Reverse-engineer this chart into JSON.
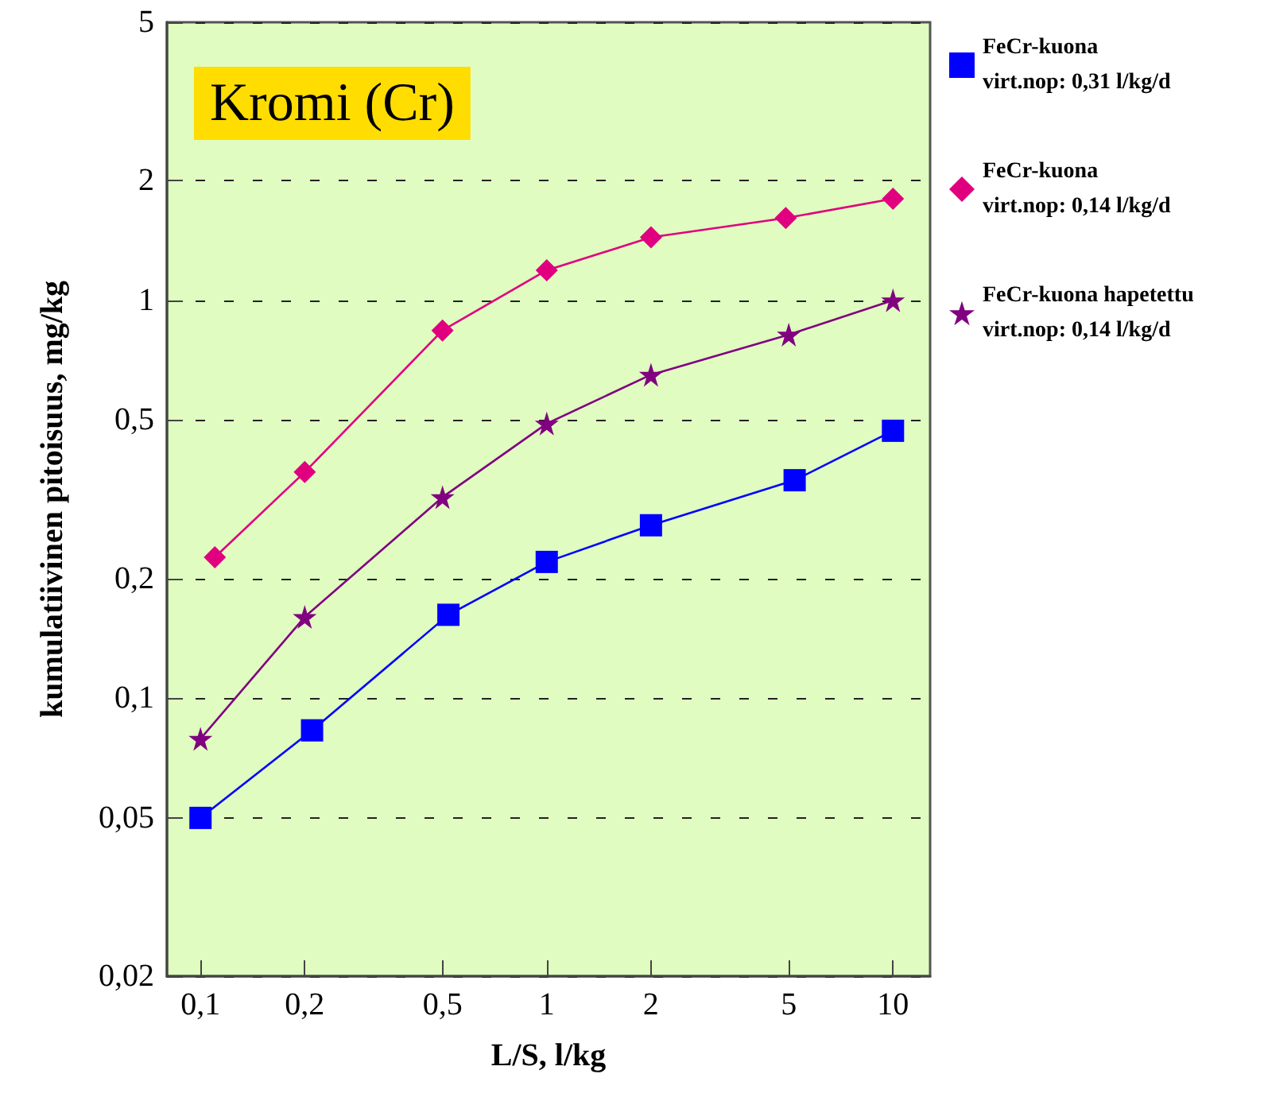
{
  "chart_data": {
    "type": "line",
    "title": "Kromi (Cr)",
    "xlabel": "L/S, l/kg",
    "ylabel": "kumulatiivinen pitoisuus, mg/kg",
    "log": "xy",
    "grid": "y",
    "legend": "top right",
    "line_style": "solid",
    "xlim": [
      0.08,
      12.8
    ],
    "xticks": [
      {
        "value": 0.1,
        "label": "0,1"
      },
      {
        "value": 0.2,
        "label": "0,2"
      },
      {
        "value": 0.5,
        "label": "0,5"
      },
      1,
      2,
      5,
      10
    ],
    "ylim": [
      0.02,
      5
    ],
    "yticks": [
      {
        "value": 0.02,
        "label": "0,02"
      },
      {
        "value": 0.05,
        "label": "0,05"
      },
      {
        "value": 0.1,
        "label": "0,1"
      },
      {
        "value": 0.2,
        "label": "0,2"
      },
      {
        "value": 0.5,
        "label": "0,5"
      },
      1,
      2,
      5
    ],
    "series": [
      {
        "name": "FeCr-kuona\nvirt.nop: 0,31 l/kg/d",
        "color": "#0000ff",
        "marker": "square",
        "x": [
          0.1,
          0.21,
          0.52,
          1,
          2,
          5.2,
          10
        ],
        "values": [
          0.05,
          0.083,
          0.162,
          0.22,
          0.272,
          0.353,
          0.47
        ]
      },
      {
        "name": "FeCr-kuona\nvirt.nop: 0,14 l/kg/d",
        "color": "#e0007f",
        "marker": "diamond",
        "x": [
          0.11,
          0.2,
          0.5,
          1,
          2,
          4.9,
          10
        ],
        "values": [
          0.226,
          0.37,
          0.84,
          1.19,
          1.44,
          1.61,
          1.8
        ]
      },
      {
        "name": "FeCr-kuona hapetettu\nvirt.nop: 0,14 l/kg/d",
        "color": "#800080",
        "marker": "star",
        "x": [
          0.1,
          0.2,
          0.5,
          1,
          2,
          5,
          10
        ],
        "values": [
          0.079,
          0.16,
          0.32,
          0.49,
          0.65,
          0.82,
          1.0
        ]
      }
    ]
  }
}
